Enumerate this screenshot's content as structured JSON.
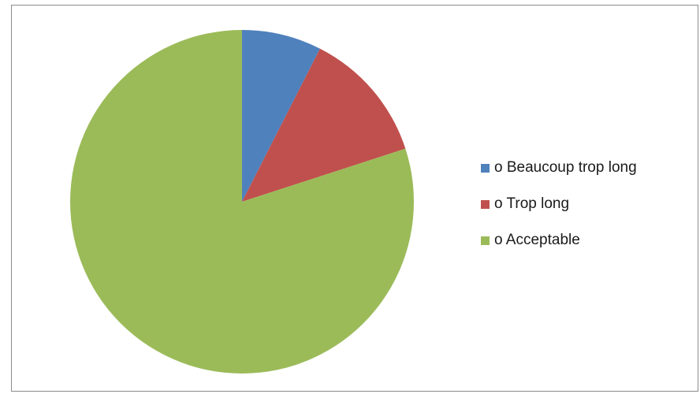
{
  "chart_data": {
    "type": "pie",
    "title": "",
    "categories": [
      "o Beaucoup trop long",
      "o Trop long",
      "o Acceptable"
    ],
    "values": [
      7.5,
      12.5,
      80
    ],
    "colors": [
      "#4f81bd",
      "#c0504d",
      "#9bbb59"
    ],
    "legend_position": "right",
    "start_angle": "12 o'clock",
    "direction": "clockwise"
  }
}
